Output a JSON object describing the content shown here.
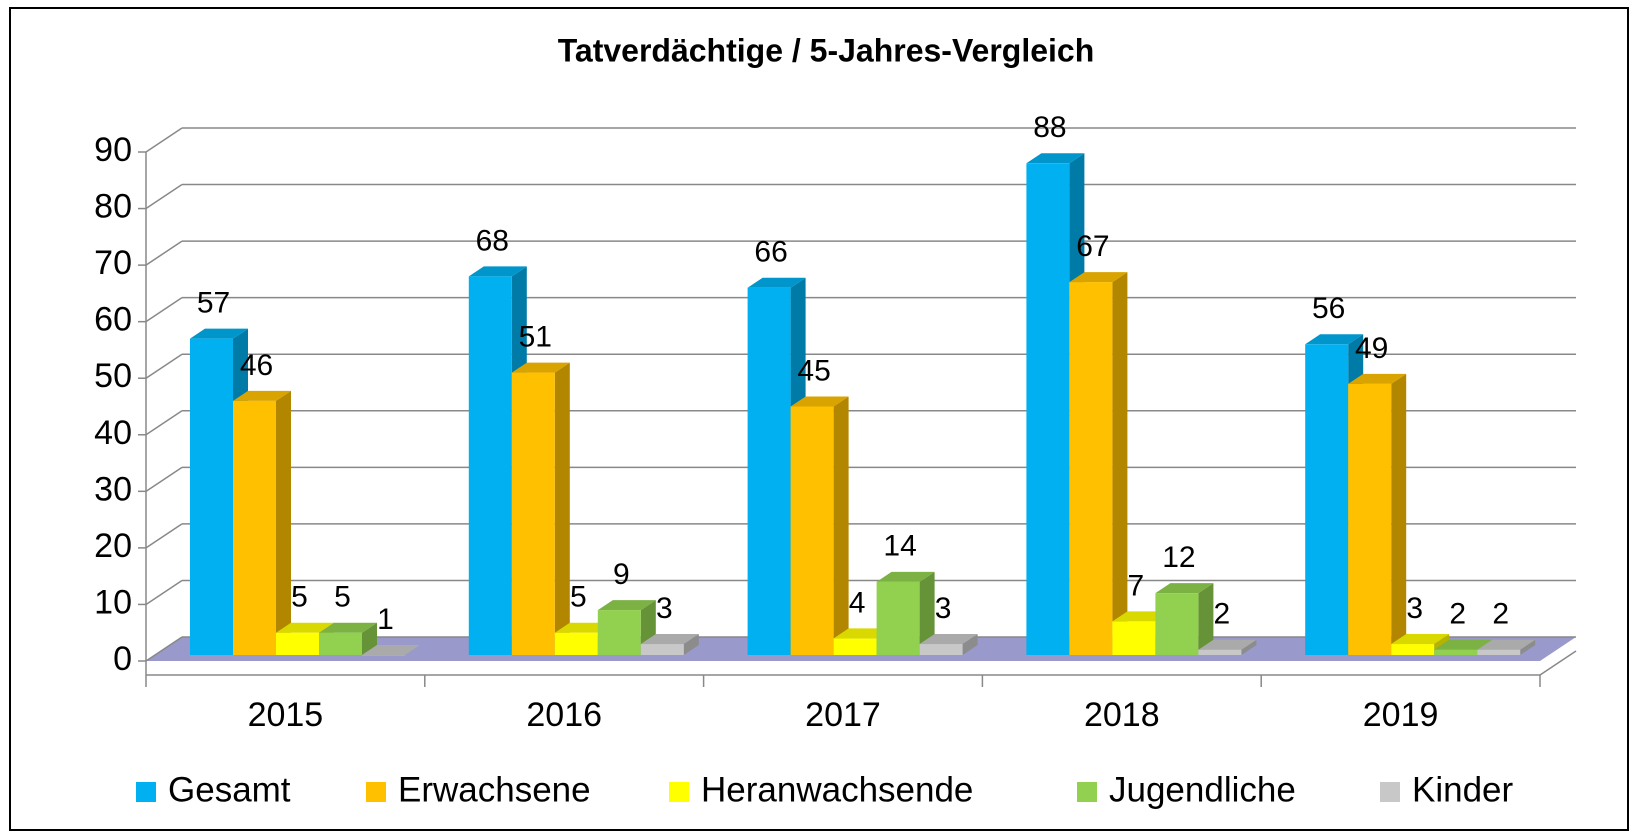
{
  "chart_data": {
    "type": "bar3d",
    "title": "Tatverdächtige / 5-Jahres-Vergleich",
    "categories": [
      "2015",
      "2016",
      "2017",
      "2018",
      "2019"
    ],
    "series": [
      {
        "name": "Gesamt",
        "color": "#00b0f0",
        "values": [
          57,
          68,
          66,
          88,
          56
        ]
      },
      {
        "name": "Erwachsene",
        "color": "#ffc000",
        "values": [
          46,
          51,
          45,
          67,
          49
        ]
      },
      {
        "name": "Heranwachsende",
        "color": "#ffff00",
        "values": [
          5,
          5,
          4,
          7,
          3
        ]
      },
      {
        "name": "Jugendliche",
        "color": "#92d050",
        "values": [
          5,
          9,
          14,
          12,
          2
        ]
      },
      {
        "name": "Kinder",
        "color": "#c8c8c8",
        "values": [
          1,
          3,
          3,
          2,
          2
        ]
      }
    ],
    "ylim": [
      0,
      90
    ],
    "yticks": [
      0,
      10,
      20,
      30,
      40,
      50,
      60,
      70,
      80,
      90
    ],
    "grid": true,
    "legend": "bottom"
  }
}
